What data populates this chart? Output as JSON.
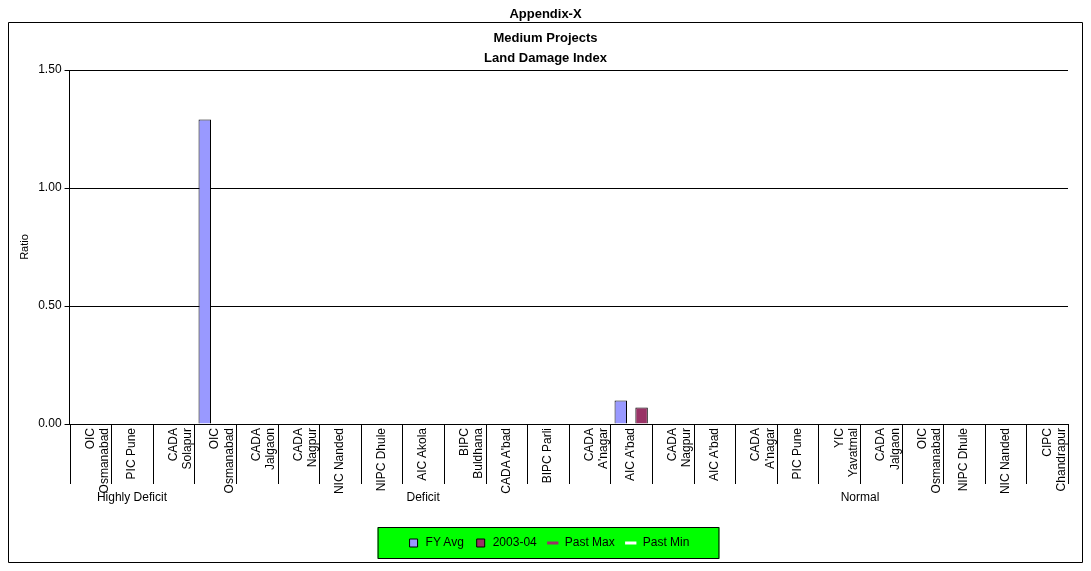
{
  "chart_data": {
    "type": "bar",
    "title": "Appendix-X",
    "subtitle": "Medium Projects\nLand Damage Index",
    "ylabel": "Ratio",
    "categories": [
      "OIC\nOsmanabad",
      "PIC Pune",
      "CADA\nSolapur",
      "OIC\nOsmanabad",
      "CADA\nJalgaon",
      "CADA\nNagpur",
      "NIC Nanded",
      "NIPC Dhule",
      "AIC Akola",
      "BIPC\nBuldhana",
      "CADA A'bad",
      "BIPC Parli",
      "CADA\nA'nagar",
      "AIC A'bad",
      "CADA\nNagpur",
      "AIC A'bad",
      "CADA\nA'nagar",
      "PIC Pune",
      "YIC\nYavatmal",
      "CADA\nJalgaon",
      "OIC\nOsmanabad",
      "NIPC Dhule",
      "NIC Nanded",
      "CIPC\nChandrapur"
    ],
    "series": [
      {
        "name": "FY Avg",
        "color": "#9999ff",
        "values": [
          null,
          null,
          null,
          1.29,
          null,
          null,
          null,
          null,
          null,
          null,
          null,
          null,
          null,
          0.1,
          null,
          null,
          null,
          null,
          null,
          null,
          null,
          null,
          null,
          null
        ]
      },
      {
        "name": "2003-04",
        "color": "#993366",
        "values": [
          null,
          null,
          null,
          null,
          null,
          null,
          null,
          null,
          null,
          null,
          null,
          null,
          null,
          0.07,
          null,
          null,
          null,
          null,
          null,
          null,
          null,
          null,
          null,
          null
        ]
      },
      {
        "name": "Past Max",
        "type": "scatter",
        "color": "#993366",
        "values": [
          null,
          null,
          null,
          null,
          null,
          null,
          null,
          null,
          null,
          null,
          null,
          null,
          null,
          null,
          null,
          null,
          null,
          null,
          null,
          null,
          null,
          null,
          null,
          null
        ]
      },
      {
        "name": "Past Min",
        "type": "scatter",
        "color": "#ffffff",
        "values": [
          null,
          null,
          null,
          null,
          null,
          null,
          null,
          null,
          null,
          null,
          null,
          null,
          null,
          null,
          null,
          null,
          null,
          null,
          null,
          null,
          null,
          null,
          null,
          null
        ]
      }
    ],
    "ylim": [
      0,
      1.5
    ],
    "yticks": [
      {
        "value": 0,
        "label": "0.00"
      },
      {
        "value": 0.5,
        "label": "0.50"
      },
      {
        "value": 1,
        "label": "1.00"
      },
      {
        "value": 1.5,
        "label": "1.50"
      }
    ],
    "grid": "y",
    "legend": "bottom",
    "annotations": [
      "Highly Deficit",
      "Deficit",
      "Normal"
    ]
  }
}
